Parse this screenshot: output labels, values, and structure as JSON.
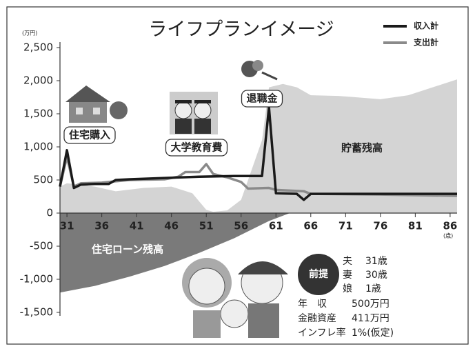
{
  "chart_data": {
    "type": "line",
    "title": "ライフプランイメージ",
    "y_unit": "(万円)",
    "x_unit": "(歳)",
    "xlim": [
      30,
      87
    ],
    "ylim": [
      -1500,
      2500
    ],
    "xticks": [
      31,
      36,
      41,
      46,
      51,
      56,
      61,
      66,
      71,
      76,
      81,
      86
    ],
    "yticks": [
      {
        "value": 2500,
        "label": "2,500"
      },
      {
        "value": 2000,
        "label": "2,000"
      },
      {
        "value": 1500,
        "label": "1,500"
      },
      {
        "value": 1000,
        "label": "1,000"
      },
      500,
      0,
      -500,
      {
        "value": -1000,
        "label": "-1,000"
      },
      {
        "value": -1500,
        "label": "-1,500"
      }
    ],
    "legend": "top-right",
    "series": [
      {
        "name": "収入計",
        "color": "#1a1a1a",
        "x": [
          30,
          31,
          32,
          33,
          35,
          37,
          38,
          40,
          45,
          50,
          55,
          59,
          60,
          61,
          64,
          65,
          66,
          76,
          87
        ],
        "values": [
          400,
          950,
          380,
          430,
          440,
          440,
          500,
          510,
          530,
          550,
          560,
          560,
          1600,
          300,
          290,
          200,
          290,
          290,
          290
        ]
      },
      {
        "name": "支出計",
        "color": "#8a8a8a",
        "x": [
          30,
          31,
          32,
          33,
          36,
          38,
          40,
          45,
          47,
          48,
          50,
          51,
          52,
          54,
          56,
          57,
          60,
          61,
          65,
          66,
          76,
          87
        ],
        "values": [
          400,
          850,
          400,
          450,
          460,
          480,
          500,
          510,
          550,
          620,
          620,
          740,
          590,
          540,
          470,
          370,
          380,
          350,
          330,
          290,
          280,
          260
        ]
      }
    ],
    "areas": [
      {
        "name": "貯蓄残高",
        "color": "#d4d4d4",
        "x": [
          30,
          31,
          35,
          38,
          42,
          46,
          49,
          51,
          52,
          54,
          56,
          59,
          60,
          62,
          64,
          66,
          70,
          76,
          80,
          87
        ],
        "values": [
          400,
          450,
          400,
          330,
          380,
          400,
          300,
          50,
          20,
          40,
          200,
          1100,
          1900,
          1950,
          1900,
          1780,
          1770,
          1720,
          1780,
          2020
        ]
      },
      {
        "name": "住宅ローン残高",
        "color": "#7a7a7a",
        "x": [
          30,
          35,
          40,
          45,
          50,
          55,
          60,
          63
        ],
        "values": [
          -1200,
          -1100,
          -960,
          -800,
          -600,
          -380,
          -120,
          0
        ]
      }
    ],
    "annotations": [
      "住宅購入",
      "大学教育費",
      "退職金"
    ],
    "assumptions": {
      "label": "前提",
      "rows": [
        [
          "夫",
          "31歳"
        ],
        [
          "妻",
          "30歳"
        ],
        [
          "娘",
          "1歳"
        ],
        [
          "年　収",
          "500万円"
        ],
        [
          "金融資産",
          "411万円"
        ],
        [
          "インフレ率",
          "1%(仮定)"
        ]
      ]
    }
  }
}
